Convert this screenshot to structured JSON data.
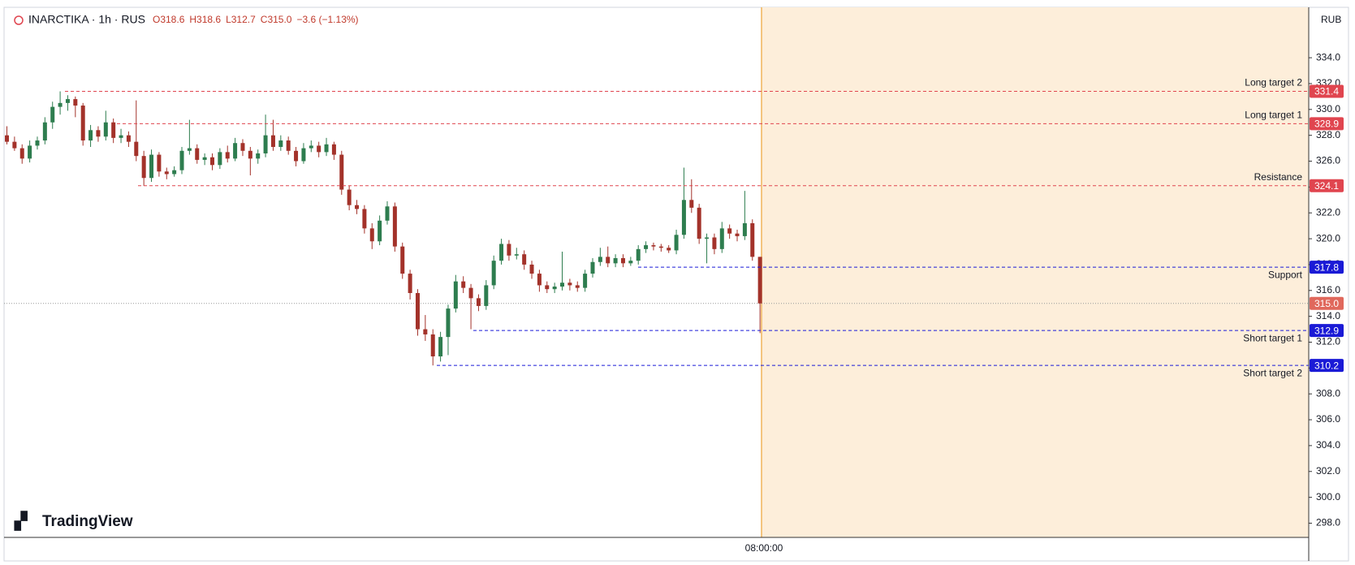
{
  "chart_data": {
    "type": "candlestick",
    "symbol": "INARCTIKA · 1h · RUS",
    "legend_values": [
      "O318.6",
      "H318.6",
      "L312.7",
      "C315.0",
      "−3.6 (−1.13%)"
    ],
    "currency": "RUB",
    "brand": "TradingView",
    "x_label": "08:00:00",
    "up_color": "#2e7d4f",
    "down_color": "#a3322a",
    "ylim": [
      296.9,
      337.9
    ],
    "yticks": [
      {
        "value": 298,
        "label": "298.0"
      },
      {
        "value": 300,
        "label": "300.0"
      },
      {
        "value": 302,
        "label": "302.0"
      },
      {
        "value": 304,
        "label": "304.0"
      },
      {
        "value": 306,
        "label": "306.0"
      },
      {
        "value": 308,
        "label": "308.0"
      },
      {
        "value": 310,
        "label": "310.0"
      },
      {
        "value": 312,
        "label": "312.0"
      },
      {
        "value": 314,
        "label": "314.0"
      },
      {
        "value": 316,
        "label": "316.0"
      },
      {
        "value": 318,
        "label": "318.0"
      },
      {
        "value": 320,
        "label": "320.0"
      },
      {
        "value": 322,
        "label": "322.0"
      },
      {
        "value": 324,
        "label": "324.0"
      },
      {
        "value": 326,
        "label": "326.0"
      },
      {
        "value": 328,
        "label": "328.0"
      },
      {
        "value": 330,
        "label": "330.0"
      },
      {
        "value": 332,
        "label": "332.0"
      },
      {
        "value": 334,
        "label": "334.0"
      }
    ],
    "last_price": {
      "value": 315,
      "label": "315.0"
    },
    "levels": [
      {
        "label": "Long target 2",
        "value": 331.4,
        "color": "#e0454f"
      },
      {
        "label": "Long target 1",
        "value": 328.9,
        "color": "#e0454f"
      },
      {
        "label": "Resistance",
        "value": 324.1,
        "color": "#e0454f"
      },
      {
        "label": "Support",
        "value": 317.8,
        "color": "#1a1ad6"
      },
      {
        "label": "Short target 1",
        "value": 312.9,
        "color": "#1a1ad6"
      },
      {
        "label": "Short target 2",
        "value": 310.2,
        "color": "#1a1ad6"
      }
    ],
    "candles": [
      [
        328.0,
        328.7,
        327.3,
        327.5
      ],
      [
        327.5,
        327.9,
        326.8,
        327.0
      ],
      [
        327.0,
        327.3,
        325.8,
        326.2
      ],
      [
        326.2,
        327.6,
        325.9,
        327.2
      ],
      [
        327.2,
        327.9,
        326.9,
        327.6
      ],
      [
        327.6,
        329.4,
        327.3,
        329.0
      ],
      [
        329.0,
        330.6,
        328.5,
        330.2
      ],
      [
        330.2,
        331.4,
        329.6,
        330.5
      ],
      [
        330.5,
        331.1,
        329.9,
        330.8
      ],
      [
        330.8,
        331.0,
        329.4,
        330.3
      ],
      [
        330.3,
        330.5,
        327.2,
        327.6
      ],
      [
        327.6,
        328.8,
        327.1,
        328.4
      ],
      [
        328.4,
        328.7,
        327.5,
        327.9
      ],
      [
        327.9,
        329.9,
        327.6,
        329.0
      ],
      [
        329.0,
        329.3,
        327.4,
        327.8
      ],
      [
        327.8,
        328.5,
        327.4,
        328.0
      ],
      [
        328.0,
        328.3,
        327.1,
        327.5
      ],
      [
        327.5,
        330.7,
        326.0,
        326.4
      ],
      [
        326.4,
        326.8,
        324.1,
        324.7
      ],
      [
        324.7,
        326.9,
        324.4,
        326.5
      ],
      [
        326.5,
        326.7,
        324.8,
        325.2
      ],
      [
        325.2,
        325.5,
        324.6,
        325.0
      ],
      [
        325.0,
        325.6,
        324.8,
        325.3
      ],
      [
        325.3,
        327.1,
        325.0,
        326.8
      ],
      [
        326.8,
        329.2,
        326.5,
        327.0
      ],
      [
        327.0,
        327.3,
        325.8,
        326.1
      ],
      [
        326.1,
        326.6,
        325.7,
        326.3
      ],
      [
        326.3,
        326.6,
        325.3,
        325.7
      ],
      [
        325.7,
        327.0,
        325.4,
        326.7
      ],
      [
        326.7,
        327.2,
        325.9,
        326.2
      ],
      [
        326.2,
        327.8,
        326.0,
        327.4
      ],
      [
        327.4,
        327.7,
        326.4,
        326.8
      ],
      [
        326.8,
        327.1,
        324.9,
        326.2
      ],
      [
        326.2,
        326.9,
        325.8,
        326.6
      ],
      [
        326.6,
        329.6,
        326.3,
        328.0
      ],
      [
        328.0,
        329.2,
        326.8,
        327.1
      ],
      [
        327.1,
        328.0,
        326.8,
        327.6
      ],
      [
        327.6,
        327.9,
        326.5,
        326.8
      ],
      [
        326.8,
        327.1,
        325.6,
        326.0
      ],
      [
        326.0,
        327.4,
        325.8,
        327.0
      ],
      [
        327.0,
        327.6,
        326.7,
        327.2
      ],
      [
        327.2,
        327.5,
        326.3,
        326.7
      ],
      [
        326.7,
        327.8,
        326.4,
        327.3
      ],
      [
        327.3,
        327.5,
        326.1,
        326.5
      ],
      [
        326.5,
        326.8,
        323.4,
        323.8
      ],
      [
        323.8,
        324.1,
        322.2,
        322.6
      ],
      [
        322.6,
        323.0,
        321.9,
        322.3
      ],
      [
        322.3,
        322.6,
        320.4,
        320.8
      ],
      [
        320.8,
        321.2,
        319.2,
        319.8
      ],
      [
        319.8,
        321.8,
        319.5,
        321.4
      ],
      [
        321.4,
        322.9,
        321.1,
        322.5
      ],
      [
        322.5,
        322.8,
        319.0,
        319.4
      ],
      [
        319.4,
        319.7,
        316.9,
        317.3
      ],
      [
        317.3,
        317.6,
        315.3,
        315.8
      ],
      [
        315.8,
        316.1,
        312.5,
        313.0
      ],
      [
        313.0,
        314.1,
        312.1,
        312.6
      ],
      [
        312.6,
        313.0,
        310.2,
        310.9
      ],
      [
        310.9,
        312.8,
        310.5,
        312.4
      ],
      [
        312.4,
        314.9,
        311.0,
        314.6
      ],
      [
        314.6,
        317.2,
        314.3,
        316.7
      ],
      [
        316.7,
        317.1,
        315.8,
        316.2
      ],
      [
        316.2,
        316.5,
        313.0,
        315.4
      ],
      [
        315.4,
        315.7,
        314.4,
        314.8
      ],
      [
        314.8,
        316.8,
        314.5,
        316.4
      ],
      [
        316.4,
        318.7,
        316.1,
        318.3
      ],
      [
        318.3,
        320.0,
        318.0,
        319.6
      ],
      [
        319.6,
        319.9,
        318.3,
        318.7
      ],
      [
        318.7,
        319.3,
        318.4,
        318.8
      ],
      [
        318.8,
        319.1,
        317.6,
        318.0
      ],
      [
        318.0,
        318.3,
        316.9,
        317.3
      ],
      [
        317.3,
        317.6,
        315.9,
        316.4
      ],
      [
        316.4,
        316.7,
        315.8,
        316.1
      ],
      [
        316.1,
        316.6,
        315.8,
        316.3
      ],
      [
        316.3,
        319.0,
        316.0,
        316.6
      ],
      [
        316.6,
        316.9,
        316.0,
        316.4
      ],
      [
        316.4,
        316.7,
        315.9,
        316.2
      ],
      [
        316.2,
        317.6,
        315.9,
        317.3
      ],
      [
        317.3,
        318.5,
        317.0,
        318.2
      ],
      [
        318.2,
        319.3,
        317.9,
        318.6
      ],
      [
        318.6,
        319.4,
        317.8,
        318.1
      ],
      [
        318.1,
        318.8,
        317.8,
        318.5
      ],
      [
        318.5,
        318.8,
        317.8,
        318.1
      ],
      [
        318.1,
        318.6,
        317.9,
        318.3
      ],
      [
        318.3,
        319.5,
        318.0,
        319.2
      ],
      [
        319.2,
        319.8,
        318.9,
        319.5
      ],
      [
        319.5,
        319.7,
        319.1,
        319.4
      ],
      [
        319.4,
        319.6,
        319.0,
        319.3
      ],
      [
        319.3,
        319.5,
        318.9,
        319.1
      ],
      [
        319.1,
        320.7,
        318.8,
        320.3
      ],
      [
        320.3,
        325.5,
        320.0,
        323.0
      ],
      [
        323.0,
        324.6,
        322.0,
        322.4
      ],
      [
        322.4,
        322.7,
        319.6,
        320.0
      ],
      [
        320.0,
        320.4,
        318.1,
        320.1
      ],
      [
        320.1,
        320.4,
        318.8,
        319.2
      ],
      [
        319.2,
        321.3,
        318.9,
        320.8
      ],
      [
        320.8,
        321.1,
        320.0,
        320.4
      ],
      [
        320.4,
        320.7,
        319.8,
        320.2
      ],
      [
        320.2,
        323.7,
        319.9,
        321.2
      ],
      [
        321.2,
        321.5,
        318.3,
        318.6
      ],
      [
        318.6,
        318.6,
        312.7,
        315.0
      ]
    ]
  }
}
